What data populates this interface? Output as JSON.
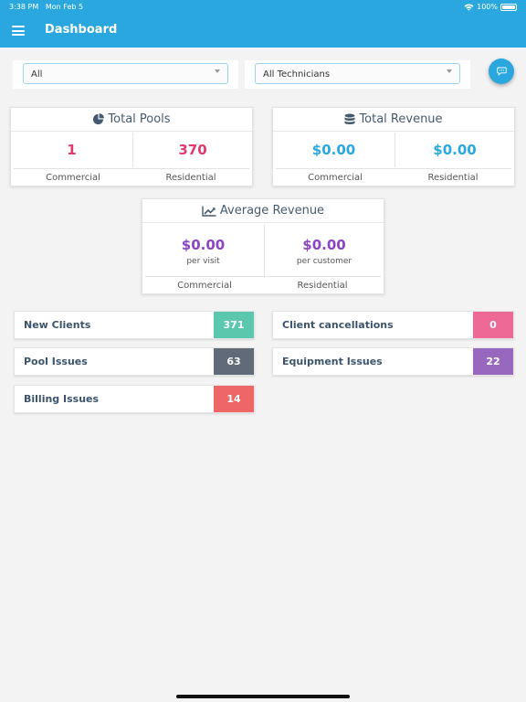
{
  "status_bar": {
    "time": "3:38 PM",
    "date": "Mon Feb 5",
    "battery": "100%"
  },
  "header": {
    "title": "Dashboard"
  },
  "filters": {
    "type": {
      "selected": "All"
    },
    "technician": {
      "selected": "All Technicians"
    }
  },
  "total_pools": {
    "title": "Total Pools",
    "commercial_value": "1",
    "residential_value": "370",
    "commercial_label": "Commercial",
    "residential_label": "Residential"
  },
  "total_revenue": {
    "title": "Total Revenue",
    "commercial_value": "$0.00",
    "residential_value": "$0.00",
    "commercial_label": "Commercial",
    "residential_label": "Residential"
  },
  "average_revenue": {
    "title": "Average Revenue",
    "per_visit_value": "$0.00",
    "per_visit_label": "per visit",
    "per_customer_value": "$0.00",
    "per_customer_label": "per customer",
    "commercial_label": "Commercial",
    "residential_label": "Residential"
  },
  "stats": {
    "new_clients": {
      "label": "New Clients",
      "count": "371",
      "color": "#5bc8ad"
    },
    "client_cancellations": {
      "label": "Client cancellations",
      "count": "0",
      "color": "#ef6997"
    },
    "pool_issues": {
      "label": "Pool Issues",
      "count": "63",
      "color": "#616a78"
    },
    "equipment_issues": {
      "label": "Equipment Issues",
      "count": "22",
      "color": "#9867be"
    },
    "billing_issues": {
      "label": "Billing Issues",
      "count": "14",
      "color": "#ee6666"
    }
  },
  "colors": {
    "accent": "#2aa7de",
    "pool_count": "#e23a6c",
    "revenue": "#29a9e0",
    "average": "#8c45c4"
  }
}
